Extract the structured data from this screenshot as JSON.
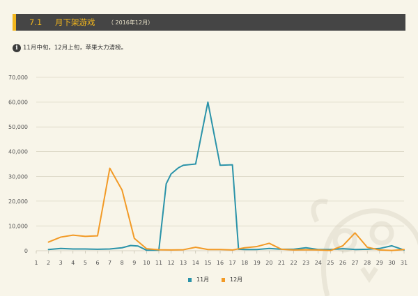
{
  "header": {
    "section_number": "7.1",
    "title": "月下架游戏",
    "date": "（ 2016年12月）"
  },
  "note": {
    "icon": "info-icon",
    "icon_glyph": "i",
    "text": "11月中旬，12月上旬，苹果大力清榜。"
  },
  "colors": {
    "header_bg": "#454545",
    "accent": "#f2b61d",
    "series_nov": "#2a93a9",
    "series_dec": "#f29a26",
    "background": "#f8f5e9"
  },
  "chart_data": {
    "type": "line",
    "title": "",
    "xlabel": "",
    "ylabel": "",
    "x": [
      1,
      2,
      3,
      4,
      5,
      6,
      7,
      8,
      9,
      10,
      11,
      12,
      13,
      14,
      15,
      16,
      17,
      18,
      19,
      20,
      21,
      22,
      23,
      24,
      25,
      26,
      27,
      28,
      29,
      30,
      31
    ],
    "xticks": [
      "1",
      "2",
      "3",
      "4",
      "5",
      "6",
      "7",
      "8",
      "9",
      "10",
      "11",
      "12",
      "13",
      "14",
      "15",
      "16",
      "17",
      "18",
      "19",
      "20",
      "21",
      "22",
      "23",
      "24",
      "25",
      "26",
      "27",
      "28",
      "29",
      "30",
      "31"
    ],
    "ylim": [
      0,
      70000
    ],
    "yticks": [
      0,
      10000,
      20000,
      30000,
      40000,
      50000,
      60000,
      70000
    ],
    "ytick_labels": [
      "0",
      "10,000",
      "20,000",
      "30,000",
      "40,000",
      "50,000",
      "60,000",
      "70,000"
    ],
    "grid": true,
    "legend_position": "bottom-center",
    "series": [
      {
        "name": "11月",
        "color": "#2a93a9",
        "x": [
          2,
          3,
          4,
          5,
          6,
          7,
          8,
          8.7,
          9.3,
          10,
          11,
          11.6,
          12,
          12.6,
          13,
          14,
          15,
          16,
          17,
          17.5,
          18,
          19,
          20,
          21,
          22,
          23,
          24,
          25,
          26,
          27,
          28,
          29,
          30,
          31
        ],
        "values": [
          500,
          900,
          700,
          700,
          600,
          700,
          1200,
          2100,
          1900,
          200,
          200,
          27000,
          31000,
          33500,
          34500,
          35000,
          60000,
          34500,
          34700,
          600,
          500,
          500,
          900,
          600,
          600,
          1200,
          500,
          500,
          800,
          500,
          600,
          900,
          2000,
          300
        ]
      },
      {
        "name": "12月",
        "color": "#f29a26",
        "x": [
          2,
          3,
          4,
          5,
          6,
          7,
          8,
          9,
          10,
          11,
          12,
          13,
          14,
          15,
          16,
          17,
          18,
          19,
          20,
          21,
          22,
          23,
          24,
          25,
          26,
          27,
          28,
          29,
          30,
          31
        ],
        "values": [
          3500,
          5500,
          6300,
          5800,
          6000,
          33300,
          24500,
          5000,
          800,
          400,
          300,
          400,
          1400,
          500,
          500,
          300,
          1200,
          1700,
          3000,
          600,
          300,
          400,
          300,
          100,
          2000,
          7200,
          1400,
          300,
          100,
          500
        ]
      }
    ]
  },
  "legend": [
    {
      "label": "11月",
      "color": "#2a93a9"
    },
    {
      "label": "12月",
      "color": "#f29a26"
    }
  ]
}
